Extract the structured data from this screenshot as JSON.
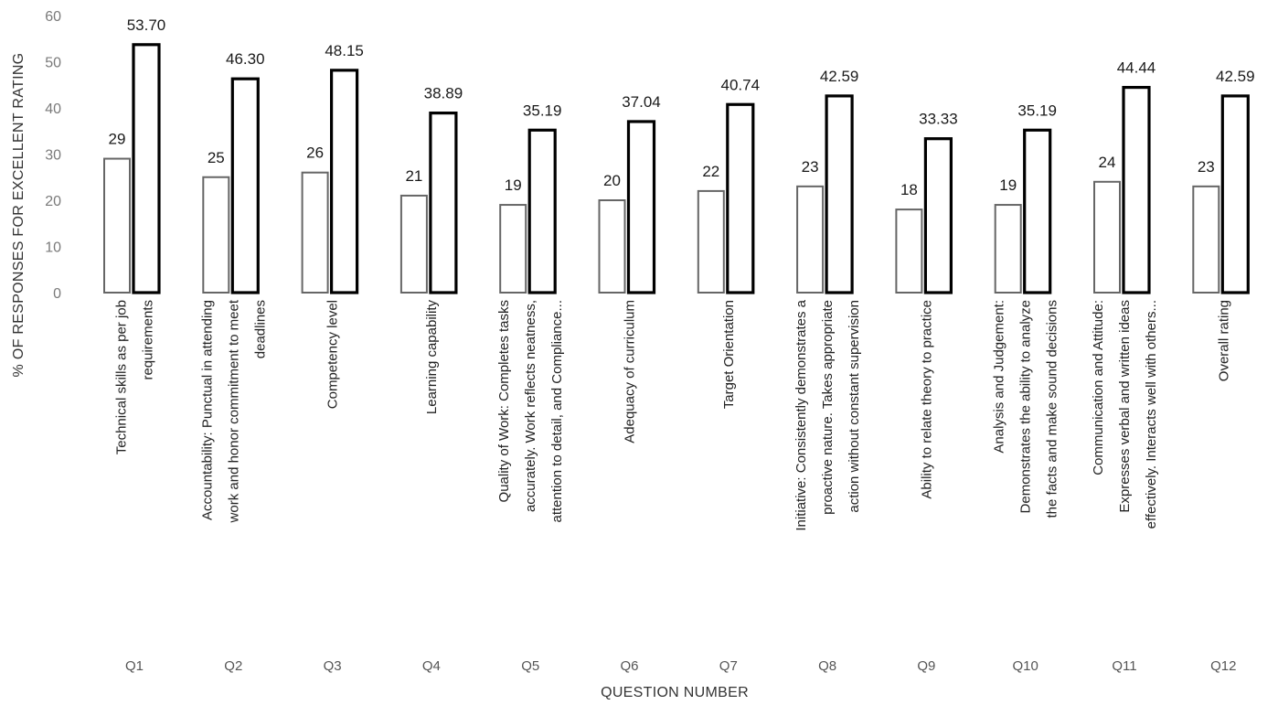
{
  "chart_data": {
    "type": "bar",
    "xlabel": "QUESTION NUMBER",
    "ylabel": "% OF RESPONSES FOR EXCELLENT RATING",
    "ylim": [
      0,
      60
    ],
    "yticks": [
      0,
      10,
      20,
      30,
      40,
      50,
      60
    ],
    "grid": false,
    "legend": "none",
    "categories": [
      "Q1",
      "Q2",
      "Q3",
      "Q4",
      "Q5",
      "Q6",
      "Q7",
      "Q8",
      "Q9",
      "Q10",
      "Q11",
      "Q12"
    ],
    "category_descriptions": [
      [
        "Technical skills as per job",
        "requirements"
      ],
      [
        "Accountability: Punctual in attending",
        "work and honor commitment to meet",
        "deadlines"
      ],
      [
        "Competency level"
      ],
      [
        "Learning capability"
      ],
      [
        "Quality of Work: Completes tasks",
        "accurately. Work reflects neatness,",
        "attention to detail, and Compliance..."
      ],
      [
        "Adequacy of curriculum"
      ],
      [
        "Target Orientation"
      ],
      [
        "Initiative: Consistently demonstrates a",
        "proactive nature. Takes appropriate",
        "action without constant supervision"
      ],
      [
        "Ability to relate theory to practice"
      ],
      [
        "Analysis and Judgement:",
        "Demonstrates the ability to analyze",
        "the facts and make sound decisions"
      ],
      [
        "Communication and Attitude:",
        "Expresses verbal and written ideas",
        "effectively. Interacts well with others..."
      ],
      [
        "Overall rating"
      ]
    ],
    "series": [
      {
        "values": [
          29,
          25,
          26,
          21,
          19,
          20,
          22,
          23,
          18,
          19,
          24,
          23
        ],
        "labels": [
          "29",
          "25",
          "26",
          "21",
          "19",
          "20",
          "22",
          "23",
          "18",
          "19",
          "24",
          "23"
        ],
        "stroke": "#666666",
        "stroke_width": "thin"
      },
      {
        "values": [
          53.7,
          46.3,
          48.15,
          38.89,
          35.19,
          37.04,
          40.74,
          42.59,
          33.33,
          35.19,
          44.44,
          42.59
        ],
        "labels": [
          "53.70",
          "46.30",
          "48.15",
          "38.89",
          "35.19",
          "37.04",
          "40.74",
          "42.59",
          "33.33",
          "35.19",
          "44.44",
          "42.59"
        ],
        "stroke": "#000000",
        "stroke_width": "thick"
      }
    ]
  }
}
